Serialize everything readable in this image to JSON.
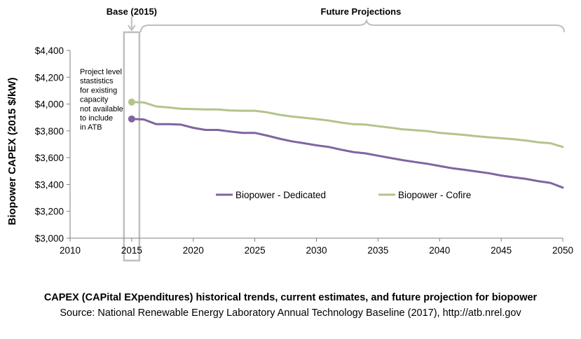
{
  "chart_data": {
    "type": "line",
    "xlabel": "",
    "ylabel": "Biopower CAPEX (2015 $/kW)",
    "xlim": [
      2010,
      2050
    ],
    "ylim": [
      3000,
      4400
    ],
    "x_ticks": [
      "2010",
      "2015",
      "2020",
      "2025",
      "2030",
      "2035",
      "2040",
      "2045",
      "2050"
    ],
    "y_ticks": [
      "$3,000",
      "$3,200",
      "$3,400",
      "$3,600",
      "$3,800",
      "$4,000",
      "$4,200",
      "$4,400"
    ],
    "x_tick_values": [
      2010,
      2015,
      2020,
      2025,
      2030,
      2035,
      2040,
      2045,
      2050
    ],
    "y_tick_values": [
      3000,
      3200,
      3400,
      3600,
      3800,
      4000,
      4200,
      4400
    ],
    "grid": false,
    "legend_position": "center",
    "series": [
      {
        "name": "Biopower - Dedicated",
        "color": "#8064a2",
        "x": [
          2015,
          2016,
          2017,
          2018,
          2019,
          2020,
          2021,
          2022,
          2023,
          2024,
          2025,
          2026,
          2027,
          2028,
          2029,
          2030,
          2031,
          2032,
          2033,
          2034,
          2035,
          2036,
          2037,
          2038,
          2039,
          2040,
          2041,
          2042,
          2043,
          2044,
          2045,
          2046,
          2047,
          2048,
          2049,
          2050
        ],
        "values": [
          3889,
          3885,
          3850,
          3850,
          3847,
          3823,
          3807,
          3807,
          3795,
          3785,
          3785,
          3765,
          3742,
          3722,
          3708,
          3692,
          3680,
          3660,
          3642,
          3632,
          3615,
          3598,
          3582,
          3568,
          3555,
          3538,
          3522,
          3510,
          3497,
          3484,
          3467,
          3454,
          3442,
          3425,
          3412,
          3377
        ]
      },
      {
        "name": "Biopower - Cofire",
        "color": "#b3c48a",
        "x": [
          2015,
          2016,
          2017,
          2018,
          2019,
          2020,
          2021,
          2022,
          2023,
          2024,
          2025,
          2026,
          2027,
          2028,
          2029,
          2030,
          2031,
          2032,
          2033,
          2034,
          2035,
          2036,
          2037,
          2038,
          2039,
          2040,
          2041,
          2042,
          2043,
          2044,
          2045,
          2046,
          2047,
          2048,
          2049,
          2050
        ],
        "values": [
          4015,
          4012,
          3982,
          3975,
          3965,
          3962,
          3960,
          3960,
          3952,
          3950,
          3950,
          3938,
          3920,
          3907,
          3898,
          3888,
          3877,
          3862,
          3850,
          3847,
          3835,
          3824,
          3812,
          3805,
          3798,
          3785,
          3778,
          3770,
          3760,
          3752,
          3745,
          3738,
          3728,
          3715,
          3708,
          3680
        ]
      }
    ],
    "base_year_points": [
      {
        "series": "Biopower - Dedicated",
        "x": 2015,
        "value": 3889
      },
      {
        "series": "Biopower - Cofire",
        "x": 2015,
        "value": 4015
      }
    ],
    "annotations": {
      "base_label": "Base (2015)",
      "future_label": "Future Projections",
      "note_lines": [
        "Project level",
        "stastistics",
        "for existing",
        "capacity",
        "not available",
        "to include",
        "in ATB"
      ]
    }
  },
  "caption": {
    "title": "CAPEX (CAPital EXpenditures) historical trends, current estimates, and future projection for biopower",
    "source": "Source: National Renewable Energy Laboratory Annual Technology Baseline (2017), http://atb.nrel.gov"
  },
  "colors": {
    "axis": "#7f7f7f",
    "bracket": "#bfbfbf",
    "base_box": "#bfbfbf"
  }
}
